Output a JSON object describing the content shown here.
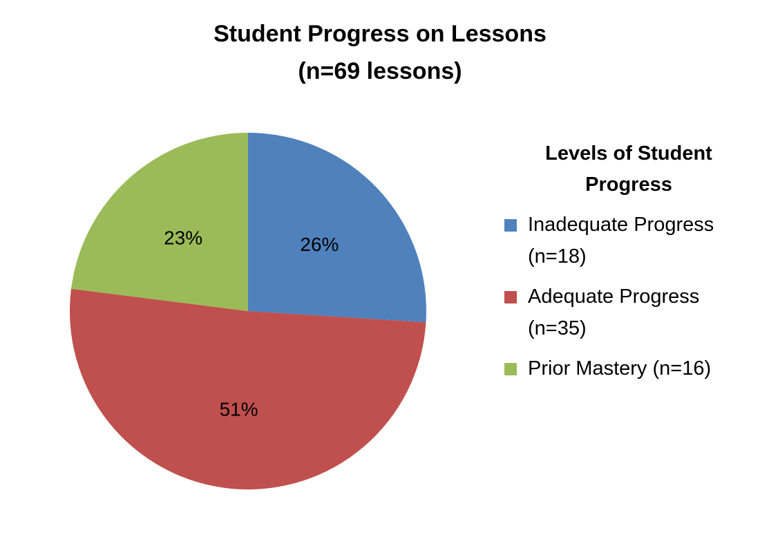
{
  "chart_data": {
    "type": "pie",
    "title": "Student Progress on Lessons",
    "subtitle": "(n=69 lessons)",
    "legend_title": [
      "Levels of Student",
      "Progress"
    ],
    "legend_position": "right",
    "slices": [
      {
        "label": "Inadequate Progress (n=18)",
        "value": 26,
        "display": "26%",
        "color": "#4F81BD"
      },
      {
        "label": "Adequate Progress (n=35)",
        "value": 51,
        "display": "51%",
        "color": "#C0504D"
      },
      {
        "label": "Prior Mastery (n=16)",
        "value": 23,
        "display": "23%",
        "color": "#9BBB59"
      }
    ]
  }
}
